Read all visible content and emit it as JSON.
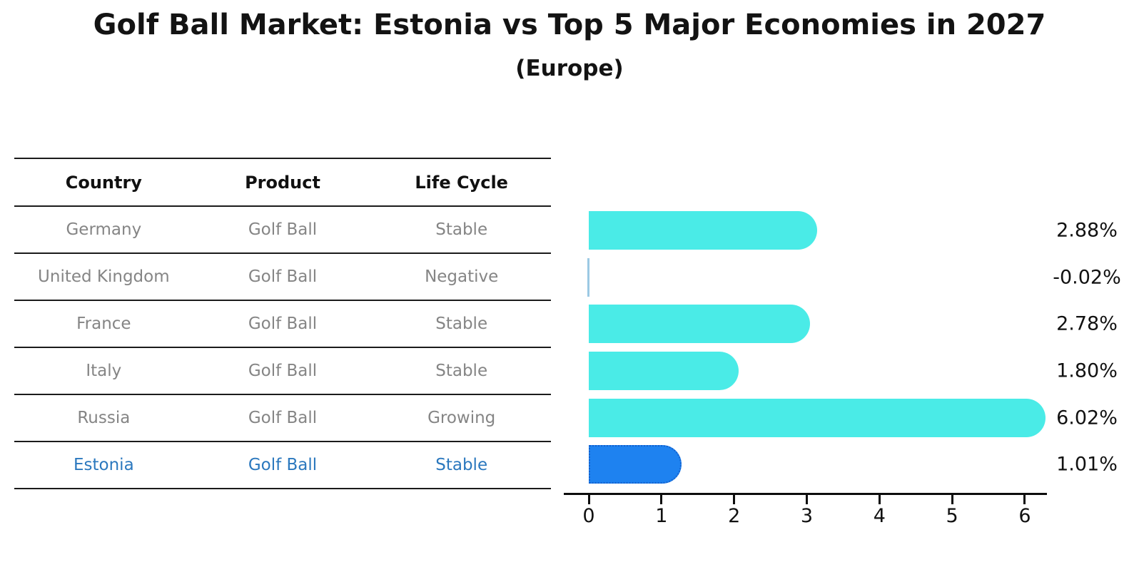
{
  "title": "Golf Ball Market: Estonia vs Top 5 Major Economies in 2027",
  "subtitle": "(Europe)",
  "table": {
    "headers": [
      "Country",
      "Product",
      "Life Cycle"
    ],
    "rows": [
      {
        "country": "Germany",
        "product": "Golf Ball",
        "life_cycle": "Stable",
        "highlight": false
      },
      {
        "country": "United Kingdom",
        "product": "Golf Ball",
        "life_cycle": "Negative",
        "highlight": false
      },
      {
        "country": "France",
        "product": "Golf Ball",
        "life_cycle": "Stable",
        "highlight": false
      },
      {
        "country": "Italy",
        "product": "Golf Ball",
        "life_cycle": "Stable",
        "highlight": false
      },
      {
        "country": "Russia",
        "product": "Golf Ball",
        "life_cycle": "Growing",
        "highlight": false
      },
      {
        "country": "Estonia",
        "product": "Golf Ball",
        "life_cycle": "Stable",
        "highlight": true
      }
    ],
    "body_text_color": "#858585",
    "header_text_color": "#111111",
    "highlight_text_color": "#2b78be"
  },
  "chart_data": {
    "type": "bar",
    "orientation": "horizontal",
    "title": "Golf Ball Market: Estonia vs Top 5 Major Economies in 2027",
    "subtitle": "(Europe)",
    "categories": [
      "Germany",
      "United Kingdom",
      "France",
      "Italy",
      "Russia",
      "Estonia"
    ],
    "values": [
      2.88,
      -0.02,
      2.78,
      1.8,
      6.02,
      1.01
    ],
    "value_labels": [
      "2.88%",
      "-0.02%",
      "2.78%",
      "1.80%",
      "6.02%",
      "1.01%"
    ],
    "unit": "percent",
    "x_ticks": [
      0,
      1,
      2,
      3,
      4,
      5,
      6
    ],
    "x_tick_labels": [
      "0",
      "1",
      "2",
      "3",
      "4",
      "5",
      "6"
    ],
    "xlim": [
      -0.34,
      6.31
    ],
    "grid": false,
    "legend": "none",
    "bar_color": "#4AEBE7",
    "negative_sliver_color": "#9CC9E4",
    "highlight_bar_color": "#1E82F0",
    "highlight_border_color": "#1461cd",
    "highlight_index": 5,
    "axis_color": "#0d0d0d"
  }
}
